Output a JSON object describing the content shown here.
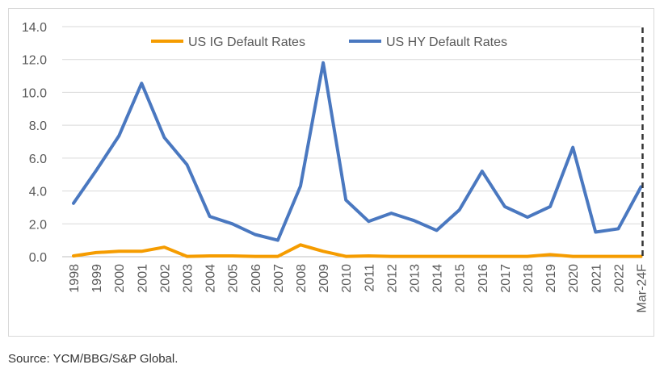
{
  "chart_data": {
    "type": "line",
    "categories": [
      "1998",
      "1999",
      "2000",
      "2001",
      "2002",
      "2003",
      "2004",
      "2005",
      "2006",
      "2007",
      "2008",
      "2009",
      "2010",
      "2011",
      "2012",
      "2013",
      "2014",
      "2015",
      "2016",
      "2017",
      "2018",
      "2019",
      "2020",
      "2021",
      "2022",
      "Mar-24F"
    ],
    "series": [
      {
        "name": "US IG Default Rates",
        "color": "#f59c00",
        "values": [
          0.05,
          0.25,
          0.33,
          0.33,
          0.58,
          0.02,
          0.05,
          0.05,
          0.02,
          0.02,
          0.72,
          0.33,
          0.02,
          0.05,
          0.02,
          0.02,
          0.02,
          0.02,
          0.02,
          0.02,
          0.02,
          0.13,
          0.02,
          0.02,
          0.02,
          0.02
        ]
      },
      {
        "name": "US HY Default Rates",
        "color": "#4a78c0",
        "values": [
          3.25,
          5.25,
          7.35,
          10.55,
          7.25,
          5.6,
          2.45,
          2.0,
          1.35,
          1.0,
          4.3,
          11.8,
          3.45,
          2.15,
          2.65,
          2.2,
          1.6,
          2.85,
          5.2,
          3.05,
          2.4,
          3.05,
          6.65,
          1.5,
          1.7,
          4.25
        ]
      }
    ],
    "y_tick_labels": [
      "0.0",
      "2.0",
      "4.0",
      "6.0",
      "8.0",
      "10.0",
      "12.0",
      "14.0"
    ],
    "ylim": [
      0,
      14
    ],
    "grid": true,
    "legend_position": "top",
    "marker_line": {
      "category": "Mar-24F",
      "style": "dashed",
      "color": "#333333"
    }
  },
  "source_note": "Source: YCM/BBG/S&P Global."
}
